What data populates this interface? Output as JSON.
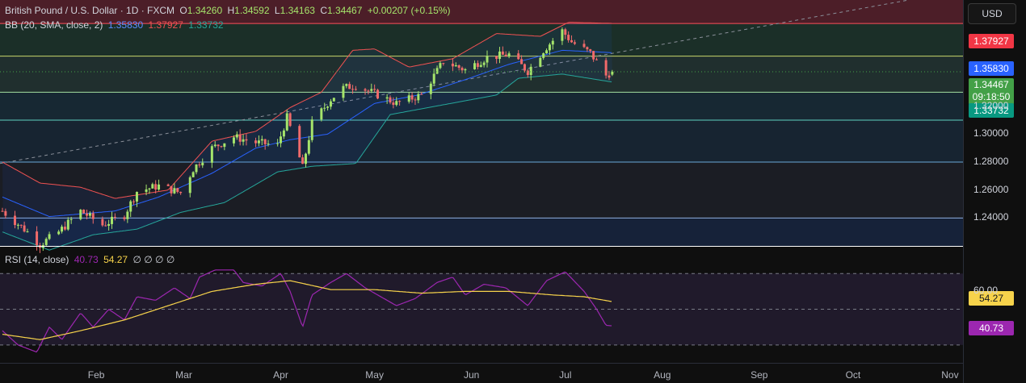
{
  "header": {
    "symbol": "British Pound / U.S. Dollar · 1D · FXCM",
    "o_label": "O",
    "o_value": "1.34260",
    "h_label": "H",
    "h_value": "1.34592",
    "l_label": "L",
    "l_value": "1.34163",
    "c_label": "C",
    "c_value": "1.34467",
    "change": "+0.00207 (+0.15%)"
  },
  "bb_header": {
    "name": "BB (20, SMA, close, 2)",
    "basis": "1.35830",
    "upper": "1.37927",
    "lower": "1.33732"
  },
  "rsi_header": {
    "name": "RSI (14, close)",
    "rsi": "40.73",
    "ma": "54.27",
    "extra": "∅ ∅ ∅ ∅"
  },
  "currency_button": "USD",
  "price_labels": {
    "upper": "1.37927",
    "basis": "1.35830",
    "last": "1.34467",
    "countdown": "09:18:50",
    "lower": "1.33732"
  },
  "rsi_labels": {
    "ma": "54.27",
    "rsi": "40.73"
  },
  "colors": {
    "up": "#a5e46b",
    "down": "#f06a6a",
    "bb_upper": "#f05252",
    "bb_basis": "#2962ff",
    "bb_lower": "#26a69a",
    "rsi_line": "#9c27b0",
    "rsi_ma": "#f7d34b",
    "last_price": "#43a047"
  },
  "chart_data": [
    {
      "type": "candlestick",
      "title": "British Pound / U.S. Dollar · 1D · FXCM",
      "ylim": [
        1.22,
        1.396
      ],
      "y_ticks": [
        "1.32000",
        "1.30000",
        "1.28000",
        "1.26000",
        "1.24000"
      ],
      "x_ticks": [
        "Feb",
        "Mar",
        "Apr",
        "May",
        "Jun",
        "Jul",
        "Aug",
        "Sep",
        "Oct",
        "Nov"
      ],
      "horizontal_levels": [
        1.3792,
        1.3558,
        1.33,
        1.31,
        1.28,
        1.24
      ],
      "close_anchors": [
        [
          "2025-01-02",
          1.245
        ],
        [
          "2025-01-10",
          1.23
        ],
        [
          "2025-01-14",
          1.221
        ],
        [
          "2025-01-20",
          1.23
        ],
        [
          "2025-01-27",
          1.245
        ],
        [
          "2025-02-03",
          1.235
        ],
        [
          "2025-02-10",
          1.242
        ],
        [
          "2025-02-14",
          1.259
        ],
        [
          "2025-02-21",
          1.263
        ],
        [
          "2025-02-28",
          1.258
        ],
        [
          "2025-03-04",
          1.275
        ],
        [
          "2025-03-10",
          1.29
        ],
        [
          "2025-03-17",
          1.298
        ],
        [
          "2025-03-24",
          1.294
        ],
        [
          "2025-03-31",
          1.292
        ],
        [
          "2025-04-03",
          1.312
        ],
        [
          "2025-04-08",
          1.276
        ],
        [
          "2025-04-11",
          1.308
        ],
        [
          "2025-04-17",
          1.325
        ],
        [
          "2025-04-21",
          1.333
        ],
        [
          "2025-04-25",
          1.335
        ],
        [
          "2025-05-01",
          1.329
        ],
        [
          "2025-05-08",
          1.322
        ],
        [
          "2025-05-12",
          1.325
        ],
        [
          "2025-05-16",
          1.328
        ],
        [
          "2025-05-23",
          1.352
        ],
        [
          "2025-05-30",
          1.346
        ],
        [
          "2025-06-06",
          1.355
        ],
        [
          "2025-06-13",
          1.357
        ],
        [
          "2025-06-19",
          1.345
        ],
        [
          "2025-06-24",
          1.36
        ],
        [
          "2025-06-30",
          1.374
        ],
        [
          "2025-07-03",
          1.366
        ],
        [
          "2025-07-09",
          1.358
        ],
        [
          "2025-07-14",
          1.342
        ],
        [
          "2025-07-16",
          1.3447
        ]
      ],
      "last": {
        "open": 1.3426,
        "high": 1.34592,
        "low": 1.34163,
        "close": 1.34467
      },
      "bollinger": {
        "settings": "20, SMA, close, 2",
        "upper_anchors": [
          [
            "2025-01-02",
            1.28
          ],
          [
            "2025-01-14",
            1.265
          ],
          [
            "2025-01-27",
            1.262
          ],
          [
            "2025-02-07",
            1.254
          ],
          [
            "2025-02-24",
            1.26
          ],
          [
            "2025-03-10",
            1.295
          ],
          [
            "2025-03-24",
            1.302
          ],
          [
            "2025-04-04",
            1.319
          ],
          [
            "2025-04-14",
            1.33
          ],
          [
            "2025-04-24",
            1.36
          ],
          [
            "2025-05-01",
            1.361
          ],
          [
            "2025-05-12",
            1.348
          ],
          [
            "2025-05-26",
            1.354
          ],
          [
            "2025-06-09",
            1.372
          ],
          [
            "2025-06-23",
            1.37
          ],
          [
            "2025-07-02",
            1.38
          ],
          [
            "2025-07-16",
            1.3793
          ]
        ],
        "basis_anchors": [
          [
            "2025-01-02",
            1.255
          ],
          [
            "2025-01-17",
            1.241
          ],
          [
            "2025-02-07",
            1.245
          ],
          [
            "2025-02-21",
            1.255
          ],
          [
            "2025-03-10",
            1.272
          ],
          [
            "2025-03-24",
            1.29
          ],
          [
            "2025-04-04",
            1.296
          ],
          [
            "2025-04-16",
            1.3
          ],
          [
            "2025-05-01",
            1.322
          ],
          [
            "2025-05-15",
            1.328
          ],
          [
            "2025-05-30",
            1.339
          ],
          [
            "2025-06-13",
            1.35
          ],
          [
            "2025-06-30",
            1.36
          ],
          [
            "2025-07-16",
            1.3583
          ]
        ],
        "lower_anchors": [
          [
            "2025-01-02",
            1.23
          ],
          [
            "2025-01-17",
            1.217
          ],
          [
            "2025-01-31",
            1.228
          ],
          [
            "2025-02-14",
            1.232
          ],
          [
            "2025-02-28",
            1.244
          ],
          [
            "2025-03-14",
            1.251
          ],
          [
            "2025-03-31",
            1.273
          ],
          [
            "2025-04-11",
            1.277
          ],
          [
            "2025-04-25",
            1.279
          ],
          [
            "2025-05-06",
            1.314
          ],
          [
            "2025-05-23",
            1.321
          ],
          [
            "2025-06-09",
            1.328
          ],
          [
            "2025-06-16",
            1.34
          ],
          [
            "2025-06-30",
            1.343
          ],
          [
            "2025-07-16",
            1.3373
          ]
        ]
      }
    },
    {
      "type": "line",
      "title": "RSI (14, close)",
      "ylim": [
        20,
        85
      ],
      "levels": [
        70,
        50,
        30
      ],
      "y_ticks": [
        "60.00"
      ],
      "series": [
        {
          "name": "RSI",
          "anchors": [
            [
              "2025-01-02",
              38
            ],
            [
              "2025-01-07",
              30
            ],
            [
              "2025-01-13",
              26
            ],
            [
              "2025-01-17",
              40
            ],
            [
              "2025-01-21",
              33
            ],
            [
              "2025-01-27",
              48
            ],
            [
              "2025-01-31",
              40
            ],
            [
              "2025-02-05",
              50
            ],
            [
              "2025-02-10",
              44
            ],
            [
              "2025-02-14",
              57
            ],
            [
              "2025-02-20",
              55
            ],
            [
              "2025-02-26",
              62
            ],
            [
              "2025-03-03",
              56
            ],
            [
              "2025-03-06",
              68
            ],
            [
              "2025-03-11",
              72
            ],
            [
              "2025-03-17",
              72
            ],
            [
              "2025-03-20",
              65
            ],
            [
              "2025-03-26",
              63
            ],
            [
              "2025-04-01",
              70
            ],
            [
              "2025-04-04",
              60
            ],
            [
              "2025-04-08",
              40
            ],
            [
              "2025-04-11",
              58
            ],
            [
              "2025-04-17",
              65
            ],
            [
              "2025-04-22",
              70
            ],
            [
              "2025-04-28",
              62
            ],
            [
              "2025-05-02",
              58
            ],
            [
              "2025-05-08",
              52
            ],
            [
              "2025-05-14",
              56
            ],
            [
              "2025-05-21",
              65
            ],
            [
              "2025-05-26",
              68
            ],
            [
              "2025-05-30",
              58
            ],
            [
              "2025-06-05",
              64
            ],
            [
              "2025-06-12",
              62
            ],
            [
              "2025-06-19",
              52
            ],
            [
              "2025-06-25",
              66
            ],
            [
              "2025-07-01",
              71
            ],
            [
              "2025-07-07",
              60
            ],
            [
              "2025-07-11",
              50
            ],
            [
              "2025-07-14",
              41
            ],
            [
              "2025-07-16",
              40.73
            ]
          ]
        },
        {
          "name": "RSI-based MA",
          "anchors": [
            [
              "2025-01-02",
              36
            ],
            [
              "2025-01-14",
              33
            ],
            [
              "2025-01-27",
              38
            ],
            [
              "2025-02-10",
              44
            ],
            [
              "2025-02-24",
              52
            ],
            [
              "2025-03-10",
              60
            ],
            [
              "2025-03-24",
              64
            ],
            [
              "2025-04-04",
              66
            ],
            [
              "2025-04-17",
              61
            ],
            [
              "2025-05-01",
              61
            ],
            [
              "2025-05-16",
              59
            ],
            [
              "2025-05-30",
              60
            ],
            [
              "2025-06-13",
              60
            ],
            [
              "2025-06-27",
              58
            ],
            [
              "2025-07-07",
              57
            ],
            [
              "2025-07-16",
              54.27
            ]
          ]
        }
      ]
    }
  ]
}
